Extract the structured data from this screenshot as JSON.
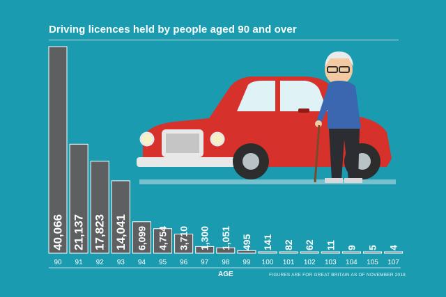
{
  "colors": {
    "background": "#1a9bb0",
    "bar_fill": "#5e5f60",
    "bar_stroke": "#ffffff",
    "value_text": "#ffffff"
  },
  "chart_data": {
    "type": "bar",
    "title": "Driving licences held by people aged 90 and over",
    "xlabel": "AGE",
    "ylabel": "",
    "categories": [
      "90",
      "91",
      "92",
      "93",
      "94",
      "95",
      "96",
      "97",
      "98",
      "99",
      "100",
      "101",
      "102",
      "103",
      "104",
      "105",
      "107"
    ],
    "values": [
      40066,
      21137,
      17823,
      14041,
      6099,
      4754,
      3710,
      1300,
      1051,
      495,
      141,
      82,
      62,
      11,
      9,
      5,
      4
    ],
    "value_labels": [
      "40,066",
      "21,137",
      "17,823",
      "14,041",
      "6,099",
      "4,754",
      "3,710",
      "1,300",
      "1,051",
      "495",
      "141",
      "82",
      "62",
      "11",
      "9",
      "5",
      "4"
    ],
    "ylim": [
      0,
      40066
    ],
    "grid": false,
    "legend": "none",
    "footnote": "FIGURES ARE FOR GREAT BRITAIN AS OF NOVEMBER 2018"
  }
}
